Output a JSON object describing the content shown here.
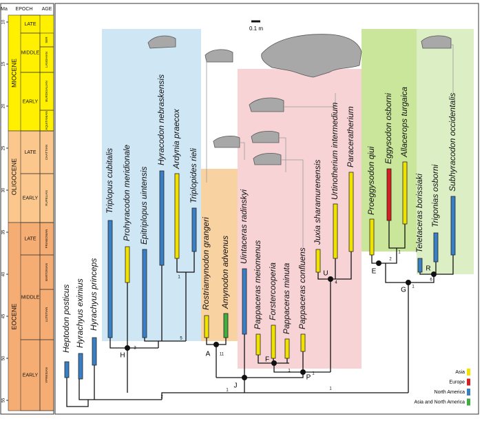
{
  "time_scale": {
    "headers": {
      "ma": "Ma",
      "epoch": "EPOCH",
      "age": "AGE"
    },
    "ma_ticks": [
      10,
      15,
      20,
      25,
      30,
      35,
      40,
      45,
      50,
      55
    ],
    "epochs": [
      {
        "name": "MIOCENE",
        "subepochs": [
          "LATE",
          "MIDDLE",
          "EARLY"
        ]
      },
      {
        "name": "OLIGOCENE",
        "subepochs": [
          "LATE",
          "EARLY"
        ]
      },
      {
        "name": "EOCENE",
        "subepochs": [
          "LATE",
          "MIDDLE",
          "EARLY"
        ]
      }
    ],
    "ages": [
      "SER",
      "LANGHIAN",
      "BURDIGALIAN",
      "AQUITANIAN",
      "CHATTIAN",
      "RUPELIAN",
      "PRIABONIAN",
      "BARTONIAN",
      "LUTETIAN",
      "YPRESIAN"
    ]
  },
  "scale_bar": "0.1 m",
  "taxa": [
    "Heptodon posticus",
    "Hyrachyus eximius",
    "Hyrachyus princeps",
    "Triplopus cubitalis",
    "Prohyracodon meridionale",
    "Epitriplopus uintensis",
    "Hyracodon nebraskensis",
    "Ardynia praecox",
    "Triplopides rieli",
    "Rostriamynodon grangeri",
    "Amynodon advenus",
    "Uintaceras radinskyi",
    "Pappaceras meiomenus",
    "Forstercooperia",
    "Pappaceras minuta",
    "Pappaceras confluens",
    "Juxia sharamurenensis",
    "Urtinotherium intermedium",
    "Paraceratherium",
    "Proeggysodon qiui",
    "Eggysodon osborni",
    "Allacerops turgaica",
    "Teletaceras borissiaki",
    "Trigonias osborni",
    "Subhyracodon occidentalis"
  ],
  "node_labels": [
    "H",
    "A",
    "F",
    "P",
    "U",
    "J",
    "E",
    "R",
    "G"
  ],
  "support_values": [
    "2",
    "1",
    "1",
    "3",
    "5",
    "1",
    "11",
    "1",
    "1",
    "4",
    "2",
    "6",
    "1",
    "1"
  ],
  "legend": [
    {
      "label": "Asia",
      "color": "#f2e200"
    },
    {
      "label": "Europe",
      "color": "#d42020"
    },
    {
      "label": "North America",
      "color": "#3a7fc4"
    },
    {
      "label": "Asia and North America",
      "color": "#3fae3f"
    }
  ]
}
